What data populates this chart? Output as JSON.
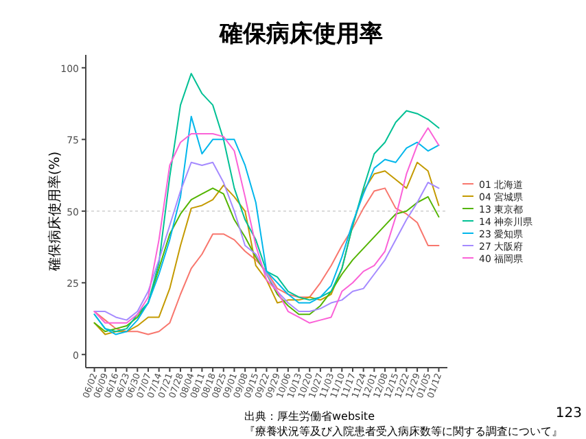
{
  "chart_data": {
    "type": "line",
    "title": "確保病床使用率",
    "ylabel": "確保病床使用率(%)",
    "categories": [
      "06/02",
      "06/09",
      "06/16",
      "06/23",
      "06/30",
      "07/07",
      "07/14",
      "07/21",
      "07/28",
      "08/04",
      "08/11",
      "08/18",
      "08/25",
      "09/01",
      "09/08",
      "09/15",
      "09/22",
      "09/29",
      "10/06",
      "10/13",
      "10/20",
      "10/27",
      "11/03",
      "11/10",
      "11/17",
      "11/24",
      "12/01",
      "12/08",
      "12/15",
      "12/22",
      "12/29",
      "01/05",
      "01/12"
    ],
    "series": [
      {
        "name": "01 北海道",
        "color": "#F8766D",
        "values": [
          15,
          12,
          9,
          8,
          8,
          7,
          8,
          11,
          21,
          30,
          35,
          42,
          42,
          40,
          36,
          33,
          29,
          23,
          21,
          20,
          20,
          25,
          31,
          38,
          44,
          51,
          57,
          58,
          51,
          49,
          46,
          38,
          38
        ]
      },
      {
        "name": "04 宮城県",
        "color": "#C49A00",
        "values": [
          11,
          7,
          8,
          8,
          10,
          13,
          13,
          23,
          38,
          51,
          52,
          54,
          59,
          55,
          50,
          31,
          26,
          18,
          19,
          19,
          20,
          19,
          21,
          30,
          45,
          57,
          63,
          64,
          61,
          58,
          67,
          64,
          52
        ]
      },
      {
        "name": "13 東京都",
        "color": "#53B400",
        "values": [
          11,
          8,
          9,
          10,
          13,
          18,
          30,
          42,
          49,
          54,
          56,
          58,
          56,
          47,
          41,
          34,
          28,
          21,
          17,
          14,
          14,
          17,
          22,
          28,
          33,
          37,
          41,
          45,
          49,
          50,
          53,
          55,
          48
        ]
      },
      {
        "name": "14 神奈川県",
        "color": "#00C094",
        "values": [
          14,
          9,
          8,
          9,
          14,
          18,
          32,
          62,
          87,
          98,
          91,
          87,
          75,
          58,
          47,
          40,
          29,
          27,
          22,
          20,
          19,
          20,
          22,
          30,
          45,
          58,
          70,
          74,
          81,
          85,
          84,
          82,
          79
        ]
      },
      {
        "name": "23 愛知県",
        "color": "#00B6EB",
        "values": [
          14,
          9,
          7,
          8,
          12,
          18,
          28,
          40,
          55,
          83,
          70,
          75,
          75,
          75,
          66,
          53,
          29,
          25,
          21,
          18,
          18,
          20,
          24,
          34,
          46,
          56,
          65,
          68,
          67,
          72,
          74,
          71,
          73
        ]
      },
      {
        "name": "27 大阪府",
        "color": "#A58AFF",
        "values": [
          15,
          15,
          13,
          12,
          15,
          22,
          33,
          45,
          57,
          67,
          66,
          67,
          60,
          50,
          38,
          35,
          28,
          22,
          18,
          15,
          15,
          16,
          18,
          19,
          22,
          23,
          28,
          33,
          40,
          47,
          53,
          60,
          58
        ]
      },
      {
        "name": "40 福岡県",
        "color": "#FB61D7",
        "values": [
          15,
          11,
          11,
          11,
          14,
          20,
          40,
          66,
          74,
          77,
          77,
          77,
          76,
          71,
          55,
          38,
          26,
          22,
          15,
          13,
          11,
          12,
          13,
          22,
          25,
          29,
          31,
          36,
          48,
          63,
          73,
          79,
          73
        ]
      }
    ],
    "ylim": [
      -4.6,
      104.5
    ],
    "yticks": [
      0,
      25,
      50,
      75,
      100
    ],
    "ref_lines": [
      {
        "axis": "y",
        "value": 50,
        "color": "#d9d9d9",
        "line_style": "dotted"
      }
    ],
    "legend": "right",
    "annotations": [
      "出典：厚生労働省website",
      "『療養状況等及び入院患者受入病床数等に関する調査について』",
      "123"
    ]
  }
}
